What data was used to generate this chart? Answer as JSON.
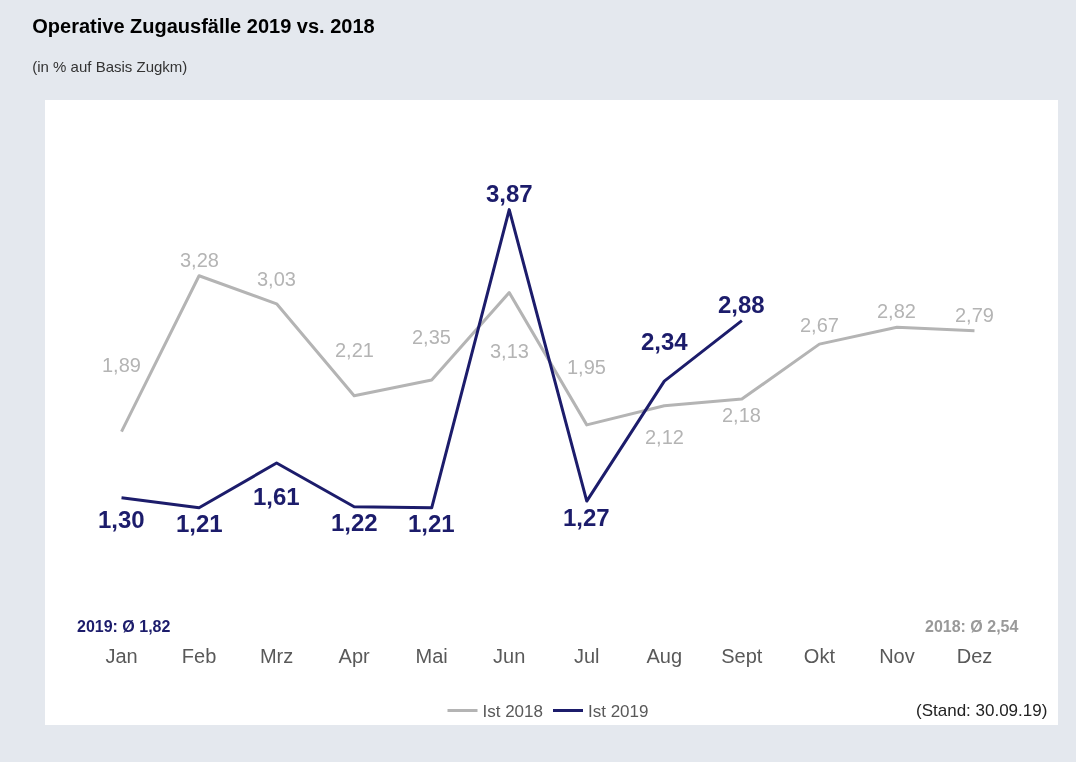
{
  "chart_data": {
    "type": "line",
    "title": "Operative Zugausfälle 2019 vs. 2018",
    "subtitle": "(in % auf Basis Zugkm)",
    "categories": [
      "Jan",
      "Feb",
      "Mrz",
      "Apr",
      "Mai",
      "Jun",
      "Jul",
      "Aug",
      "Sept",
      "Okt",
      "Nov",
      "Dez"
    ],
    "series": [
      {
        "name": "Ist 2018",
        "color": "#b4b4b4",
        "values": [
          1.89,
          3.28,
          3.03,
          2.21,
          2.35,
          3.13,
          1.95,
          2.12,
          2.18,
          2.67,
          2.82,
          2.79
        ],
        "value_labels": [
          "1,89",
          "3,28",
          "3,03",
          "2,21",
          "2,35",
          "3,13",
          "1,95",
          "2,12",
          "2,18",
          "2,67",
          "2,82",
          "2,79"
        ]
      },
      {
        "name": "Ist 2019",
        "color": "#1c1c6b",
        "values": [
          1.3,
          1.21,
          1.61,
          1.22,
          1.21,
          3.87,
          1.27,
          2.34,
          2.88,
          null,
          null,
          null
        ],
        "value_labels": [
          "1,30",
          "1,21",
          "1,61",
          "1,22",
          "1,21",
          "3,87",
          "1,27",
          "2,34",
          "2,88",
          null,
          null,
          null
        ]
      }
    ],
    "annotations": [
      "2019: Ø 1,82",
      "2018: Ø 2,54",
      "(Stand: 30.09.19)"
    ],
    "legend": "bottom",
    "marker": "none",
    "line_style": "solid"
  }
}
